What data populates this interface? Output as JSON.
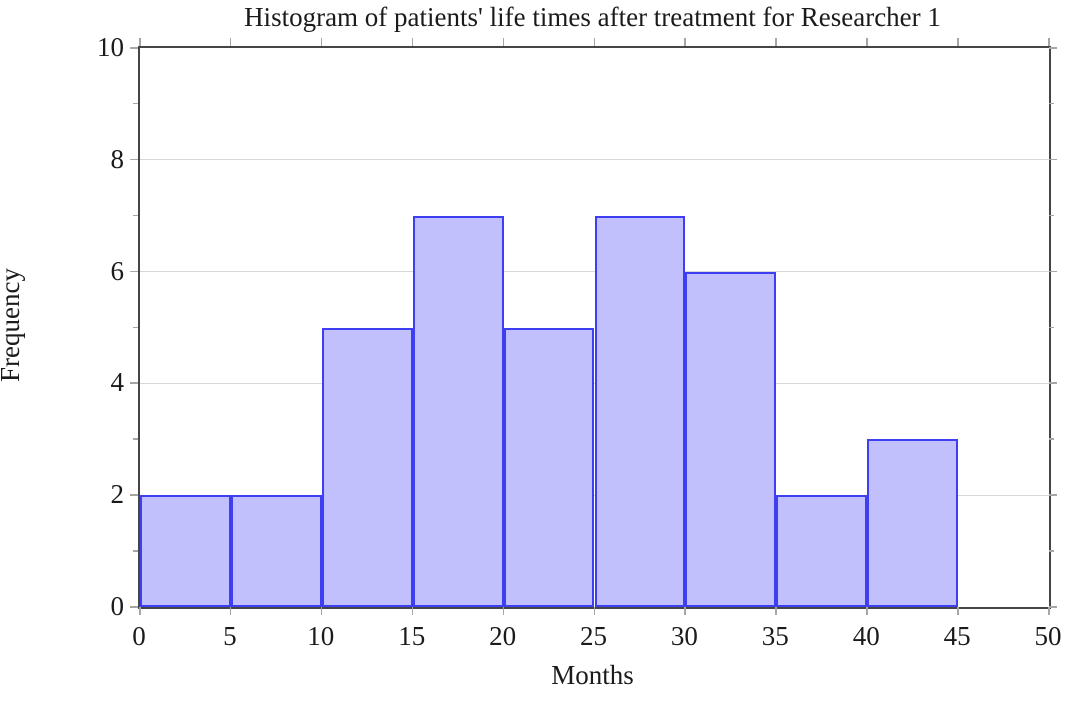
{
  "chart_data": {
    "type": "bar",
    "title": "Histogram of patients' life times after treatment for Researcher 1",
    "xlabel": "Months",
    "ylabel": "Frequency",
    "bin_width": 5,
    "bin_edges": [
      0,
      5,
      10,
      15,
      20,
      25,
      30,
      35,
      40,
      45,
      50
    ],
    "values": [
      2,
      2,
      5,
      7,
      5,
      7,
      6,
      2,
      3,
      0
    ],
    "xlim": [
      0,
      50
    ],
    "ylim": [
      0,
      10
    ],
    "x_ticks": [
      0,
      5,
      10,
      15,
      20,
      25,
      30,
      35,
      40,
      45,
      50
    ],
    "y_ticks": [
      0,
      2,
      4,
      6,
      8,
      10
    ],
    "y_minor_ticks": [
      1,
      3,
      5,
      7,
      9
    ],
    "grid": "horizontal-major-only",
    "legend": "none",
    "colors": {
      "bar_fill": "#c2c0fc",
      "bar_border": "#3e3ef2",
      "gridline": "#d8d8d8",
      "frame": "#454545",
      "tick": "#a6a6a6",
      "text": "#1b1b1b"
    }
  }
}
